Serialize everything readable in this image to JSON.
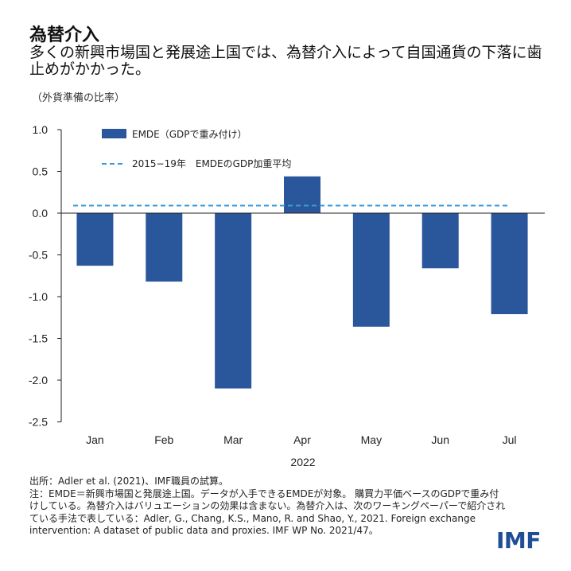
{
  "header": {
    "title": "為替介入",
    "subtitle": "多くの新興市場国と発展途上国では、為替介入によって自国通貨の下落に歯止めがかかった。",
    "unit": "（外貨準備の比率）"
  },
  "chart_data": {
    "type": "bar",
    "categories": [
      "Jan",
      "Feb",
      "Mar",
      "Apr",
      "May",
      "Jun",
      "Jul"
    ],
    "xlabel": "2022",
    "ylabel": "",
    "ylim": [
      -2.5,
      1.0
    ],
    "yticks": [
      "1.0",
      "0.5",
      "0.0",
      "-0.5",
      "-1.0",
      "-1.5",
      "-2.0",
      "-2.5"
    ],
    "series": [
      {
        "name": "EMDE（GDPで重み付け）",
        "color": "#2a569b",
        "values": [
          -0.63,
          -0.82,
          -2.1,
          0.44,
          -1.36,
          -0.66,
          -1.21
        ]
      }
    ],
    "reference_line": {
      "name": "2015−19年　EMDEのGDP加重平均",
      "value": 0.09,
      "color": "#3a9ad9",
      "style": "dashed"
    },
    "legend": "top-left",
    "grid": false
  },
  "footer": {
    "source": "出所：Adler et al. (2021)、IMF職員の試算。",
    "note": "注：EMDE＝新興市場国と発展途上国。データが入手できるEMDEが対象。 購買力平価ベースのGDPで重み付けしている。為替介入はバリュエーションの効果は含まない。為替介入は、次のワーキングペーパーで紹介されている手法で表している：Adler, G., Chang, K.S., Mano, R. and Shao, Y., 2021. Foreign exchange intervention: A dataset of public data and proxies. IMF WP No. 2021/47。",
    "logo": "IMF"
  }
}
